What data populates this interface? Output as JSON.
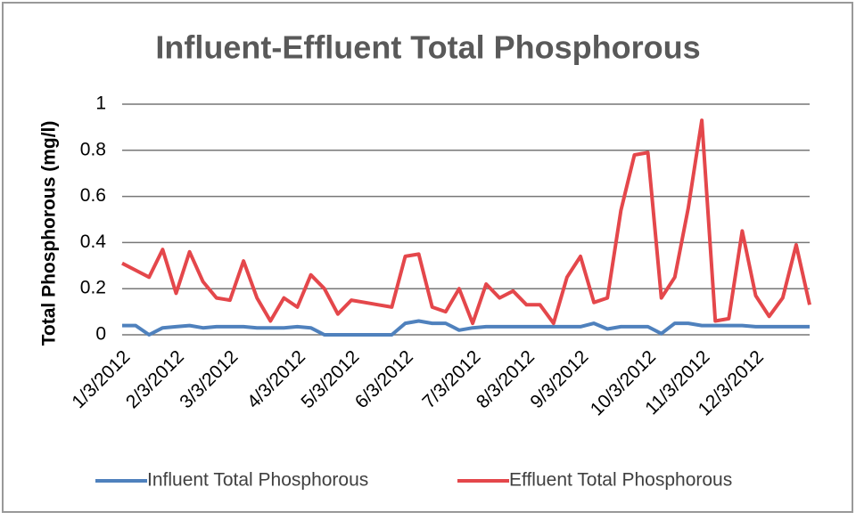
{
  "chart_data": {
    "type": "line",
    "title": "Influent-Effluent Total Phosphorous",
    "y_label": "Total Phosphorous (mg/l)",
    "categories": [
      "1/3/2012",
      null,
      null,
      null,
      "2/3/2012",
      null,
      null,
      null,
      "3/3/2012",
      null,
      null,
      null,
      null,
      "4/3/2012",
      null,
      null,
      null,
      "5/3/2012",
      null,
      null,
      null,
      "6/3/2012",
      null,
      null,
      null,
      null,
      "7/3/2012",
      null,
      null,
      null,
      "8/3/2012",
      null,
      null,
      null,
      "9/3/2012",
      null,
      null,
      null,
      null,
      "10/3/2012",
      null,
      null,
      null,
      "11/3/2012",
      null,
      null,
      null,
      "12/3/2012",
      null,
      null,
      null,
      null
    ],
    "series": [
      {
        "name": "Influent Total Phosphorous",
        "color": "#4f81bd",
        "values": [
          0.04,
          0.04,
          0,
          0.03,
          0.035,
          0.04,
          0.03,
          0.035,
          0.035,
          0.035,
          0.03,
          0.03,
          0.03,
          0.035,
          0.03,
          0,
          0,
          0,
          0,
          0,
          0,
          0.05,
          0.06,
          0.05,
          0.05,
          0.02,
          0.03,
          0.035,
          0.035,
          0.035,
          0.035,
          0.035,
          0.035,
          0.035,
          0.035,
          0.05,
          0.025,
          0.035,
          0.035,
          0.035,
          0.005,
          0.05,
          0.05,
          0.04,
          0.04,
          0.04,
          0.04,
          0.035,
          0.035,
          0.035,
          0.035,
          0.035
        ]
      },
      {
        "name": "Effluent Total Phosphorous",
        "color": "#e4474b",
        "values": [
          0.31,
          0.28,
          0.25,
          0.37,
          0.18,
          0.36,
          0.23,
          0.16,
          0.15,
          0.32,
          0.16,
          0.06,
          0.16,
          0.12,
          0.26,
          0.2,
          0.09,
          0.15,
          0.14,
          0.13,
          0.12,
          0.34,
          0.35,
          0.12,
          0.1,
          0.2,
          0.05,
          0.22,
          0.16,
          0.19,
          0.13,
          0.13,
          0.05,
          0.25,
          0.34,
          0.14,
          0.16,
          0.54,
          0.78,
          0.79,
          0.16,
          0.25,
          0.55,
          0.93,
          0.06,
          0.07,
          0.45,
          0.17,
          0.08,
          0.16,
          0.39,
          0.13
        ]
      }
    ],
    "ylim": [
      0,
      1
    ],
    "yticks": [
      0,
      0.2,
      0.4,
      0.6,
      0.8,
      1
    ],
    "grid": true,
    "legend": "bottom"
  }
}
